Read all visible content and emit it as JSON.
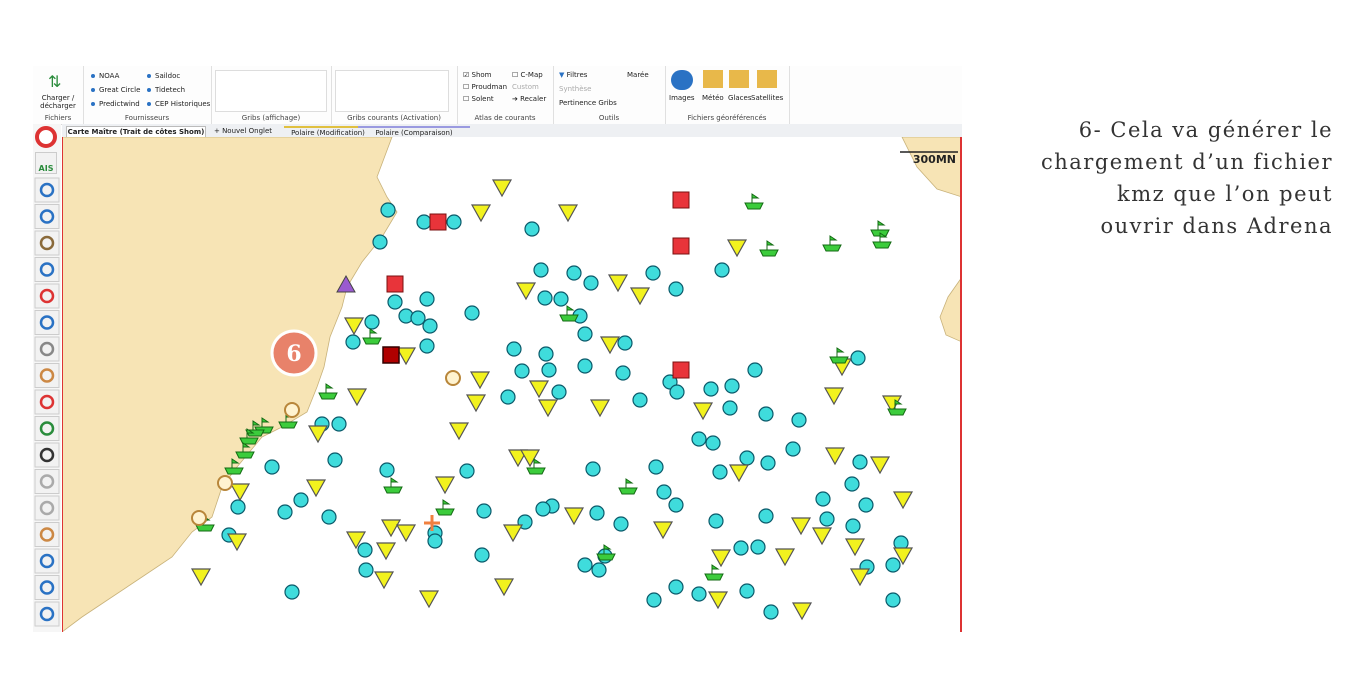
{
  "ribbon": {
    "groups": [
      {
        "label": "Fichiers",
        "items": [
          "Charger / décharger"
        ]
      },
      {
        "label": "Fournisseurs",
        "items": [
          "NOAA",
          "Great Circle",
          "Predictwind",
          "Saildoc",
          "Tidetech",
          "CEP Historiques"
        ]
      },
      {
        "label": "Gribs (affichage)",
        "items": []
      },
      {
        "label": "Gribs courants (Activation)",
        "items": []
      },
      {
        "label": "Atlas de courants",
        "items": [
          "Shom",
          "Proudman",
          "Solent",
          "C-Map",
          "Custom",
          "Recaler"
        ]
      },
      {
        "label": "Outils",
        "items": [
          "Filtres",
          "Synthèse",
          "Pertinence Gribs",
          "Marée"
        ]
      },
      {
        "label": "Fichiers géoréférencés",
        "items": [
          "Images",
          "Météo",
          "Glaces",
          "Satellites"
        ]
      }
    ]
  },
  "tabs": [
    "Carte Maître (Trait de côtes Shom)",
    "Nouvel Onglet",
    "Polaire (Modification)",
    "Polaire (Comparaison)"
  ],
  "toolbar": {
    "ais": "AIS"
  },
  "map": {
    "scale": "300MN",
    "step_badge": "6"
  },
  "caption": {
    "lines": [
      "6- Cela va générer le",
      "chargement d’un fichier",
      "kmz que l’on peut",
      "ouvrir dans Adrena"
    ]
  }
}
